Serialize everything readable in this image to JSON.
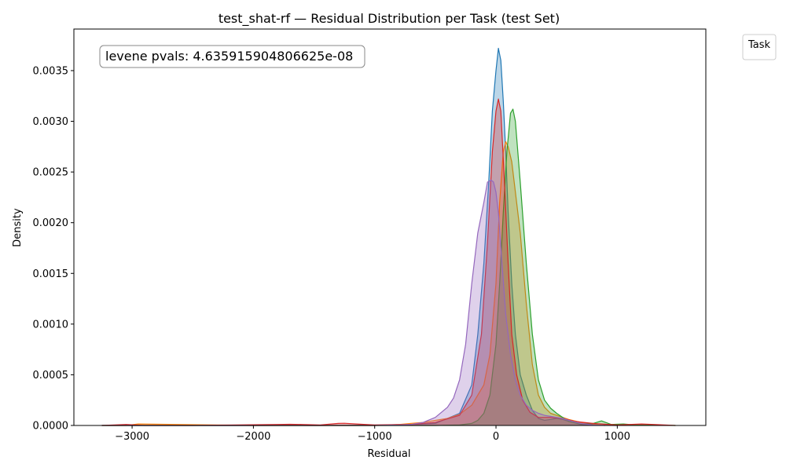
{
  "chart_data": {
    "type": "area",
    "title": "test_shat-rf — Residual Distribution per Task (test Set)",
    "xlabel": "Residual",
    "ylabel": "Density",
    "xlim": [
      -3480,
      1730
    ],
    "ylim": [
      0,
      0.00391
    ],
    "x_ticks": [
      -3000,
      -2000,
      -1000,
      0,
      1000
    ],
    "x_tick_labels": [
      "−3000",
      "−2000",
      "−1000",
      "0",
      "1000"
    ],
    "y_ticks": [
      0,
      0.0005,
      0.001,
      0.0015,
      0.002,
      0.0025,
      0.003,
      0.0035
    ],
    "y_tick_labels": [
      "0.0000",
      "0.0005",
      "0.0010",
      "0.0015",
      "0.0020",
      "0.0025",
      "0.0030",
      "0.0035"
    ],
    "grid": false,
    "legend": {
      "title": "Task",
      "placement": "outside-top-right",
      "entries": []
    },
    "annotation": "levene pvals: 4.635915904806625e-08",
    "series": [
      {
        "color": "#1f77b4",
        "x": [
          -3250,
          -1500,
          -800,
          -500,
          -300,
          -200,
          -150,
          -100,
          -60,
          -30,
          0,
          20,
          40,
          60,
          80,
          100,
          130,
          160,
          200,
          250,
          300,
          350,
          400,
          450,
          500,
          550,
          600,
          700,
          800,
          1000
        ],
        "y": [
          0,
          0,
          5e-06,
          2e-05,
          0.00012,
          0.0004,
          0.0009,
          0.0016,
          0.0024,
          0.0031,
          0.0035,
          0.00372,
          0.0036,
          0.0032,
          0.0027,
          0.0021,
          0.0014,
          0.0009,
          0.0005,
          0.0003,
          0.00015,
          7e-05,
          5e-05,
          6e-05,
          7e-05,
          6e-05,
          4e-05,
          1e-05,
          3e-06,
          0
        ]
      },
      {
        "color": "#ff7f0e",
        "x": [
          -3250,
          -3050,
          -2950,
          -2000,
          -1000,
          -800,
          -700,
          -600,
          -500,
          -400,
          -300,
          -200,
          -100,
          -50,
          0,
          30,
          60,
          80,
          100,
          130,
          150,
          200,
          250,
          300,
          350,
          400,
          450,
          500,
          600,
          700,
          800,
          900
        ],
        "y": [
          0,
          0,
          1.5e-05,
          0,
          0,
          1e-05,
          2e-05,
          3e-05,
          5e-05,
          7e-05,
          0.00011,
          0.0002,
          0.0004,
          0.0007,
          0.0014,
          0.0022,
          0.0027,
          0.0028,
          0.00275,
          0.0026,
          0.0024,
          0.0019,
          0.0012,
          0.0006,
          0.0003,
          0.00018,
          0.00012,
          0.0001,
          6e-05,
          3e-05,
          1e-05,
          0
        ]
      },
      {
        "color": "#2ca02c",
        "x": [
          -3250,
          -1000,
          -500,
          -300,
          -200,
          -150,
          -100,
          -50,
          0,
          30,
          60,
          90,
          120,
          140,
          160,
          200,
          250,
          300,
          350,
          400,
          450,
          500,
          550,
          600,
          700,
          800,
          870,
          950,
          1050,
          1150,
          1250,
          1480
        ],
        "y": [
          0,
          0,
          0,
          5e-06,
          2e-05,
          5e-05,
          0.00012,
          0.0003,
          0.0008,
          0.0014,
          0.0021,
          0.0027,
          0.00308,
          0.00312,
          0.003,
          0.0024,
          0.0016,
          0.0009,
          0.00045,
          0.00025,
          0.00017,
          0.00012,
          8e-05,
          4e-05,
          1.5e-05,
          2e-05,
          4.5e-05,
          1e-05,
          1.5e-05,
          5e-06,
          5e-06,
          0
        ]
      },
      {
        "color": "#d62728",
        "x": [
          -3250,
          -3050,
          -2900,
          -2500,
          -1800,
          -1700,
          -1600,
          -1450,
          -1300,
          -1250,
          -1150,
          -1000,
          -700,
          -500,
          -300,
          -200,
          -120,
          -70,
          -30,
          0,
          20,
          40,
          70,
          100,
          130,
          170,
          220,
          280,
          350,
          450,
          550,
          650,
          800,
          1000,
          1100,
          1200,
          1300,
          1480
        ],
        "y": [
          0,
          1e-05,
          0,
          0,
          1e-05,
          1.2e-05,
          1e-05,
          5e-06,
          2e-05,
          2.2e-05,
          1.5e-05,
          5e-06,
          1e-05,
          3e-05,
          0.0001,
          0.0003,
          0.0009,
          0.0018,
          0.0027,
          0.0031,
          0.00322,
          0.0031,
          0.0024,
          0.0016,
          0.0009,
          0.0005,
          0.00025,
          0.00013,
          8e-05,
          8e-05,
          7e-05,
          4e-05,
          2e-05,
          5e-06,
          1e-05,
          1.5e-05,
          1e-05,
          0
        ]
      },
      {
        "color": "#9467bd",
        "x": [
          -3250,
          -1000,
          -800,
          -700,
          -600,
          -500,
          -400,
          -350,
          -300,
          -250,
          -200,
          -150,
          -100,
          -70,
          -40,
          -20,
          0,
          20,
          50,
          80,
          120,
          160,
          200,
          250,
          300,
          350,
          400,
          450,
          500,
          550,
          600,
          700,
          800,
          900
        ],
        "y": [
          0,
          0,
          5e-06,
          1e-05,
          3e-05,
          8e-05,
          0.00018,
          0.00027,
          0.00045,
          0.0008,
          0.0014,
          0.0019,
          0.0022,
          0.0024,
          0.00242,
          0.0024,
          0.0023,
          0.0021,
          0.0016,
          0.0011,
          0.0007,
          0.00045,
          0.0003,
          0.0002,
          0.00015,
          0.00012,
          0.0001,
          9e-05,
          8e-05,
          7e-05,
          5e-05,
          2e-05,
          5e-06,
          0
        ]
      }
    ]
  }
}
